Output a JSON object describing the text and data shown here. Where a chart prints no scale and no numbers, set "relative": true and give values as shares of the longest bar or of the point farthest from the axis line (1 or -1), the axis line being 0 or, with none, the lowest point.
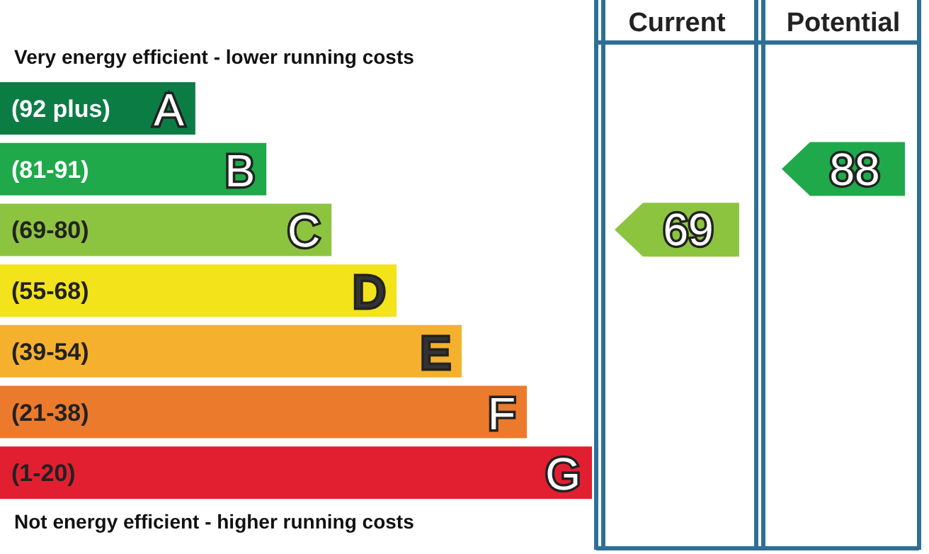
{
  "chart_data": {
    "type": "bar",
    "orientation": "horizontal",
    "relative": true,
    "title": "Very energy efficient - lower running costs",
    "categories": [
      "(92 plus) A",
      "(81-91) B",
      "(69-80) C",
      "(55-68) D",
      "(39-54) E",
      "(21-38) F",
      "(1-20) G"
    ],
    "values": [
      0.33,
      0.45,
      0.56,
      0.67,
      0.78,
      0.89,
      1
    ],
    "colors": [
      "#0c7c45",
      "#1fa94b",
      "#8dc43f",
      "#f2e31b",
      "#f5b12d",
      "#ec7a2c",
      "#e21f30"
    ],
    "annotations": [
      "Not energy efficient - higher running costs",
      "Current",
      "Potential",
      "69",
      "88"
    ]
  }
}
